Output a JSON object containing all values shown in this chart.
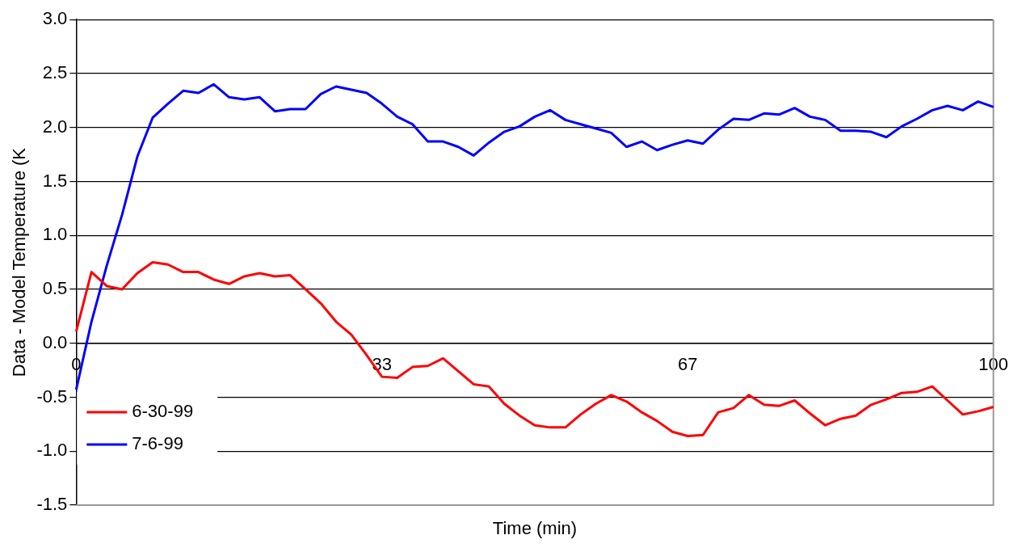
{
  "chart_data": {
    "type": "line",
    "xlabel": "Time (min)",
    "ylabel": "Data - Model Temperature (K",
    "categories": [
      "0",
      null,
      null,
      null,
      null,
      null,
      null,
      null,
      null,
      null,
      null,
      null,
      null,
      null,
      null,
      null,
      null,
      null,
      null,
      null,
      "33",
      null,
      null,
      null,
      null,
      null,
      null,
      null,
      null,
      null,
      null,
      null,
      null,
      null,
      null,
      null,
      null,
      null,
      null,
      null,
      "67",
      null,
      null,
      null,
      null,
      null,
      null,
      null,
      null,
      null,
      null,
      null,
      null,
      null,
      null,
      null,
      null,
      null,
      null,
      null,
      "100"
    ],
    "series": [
      {
        "name": "6-30-99",
        "color": "#ff0000",
        "values": [
          0.11,
          0.66,
          0.53,
          0.5,
          0.65,
          0.75,
          0.73,
          0.66,
          0.66,
          0.59,
          0.55,
          0.62,
          0.65,
          0.62,
          0.63,
          0.5,
          0.37,
          0.2,
          0.08,
          -0.11,
          -0.31,
          -0.32,
          -0.22,
          -0.21,
          -0.14,
          -0.26,
          -0.38,
          -0.4,
          -0.56,
          -0.67,
          -0.76,
          -0.78,
          -0.78,
          -0.66,
          -0.56,
          -0.48,
          -0.54,
          -0.64,
          -0.72,
          -0.82,
          -0.86,
          -0.85,
          -0.64,
          -0.6,
          -0.48,
          -0.57,
          -0.58,
          -0.53,
          -0.65,
          -0.76,
          -0.7,
          -0.67,
          -0.57,
          -0.52,
          -0.46,
          -0.45,
          -0.4,
          -0.53,
          -0.66,
          -0.63,
          -0.59
        ]
      },
      {
        "name": "7-6-99",
        "color": "#0000ff",
        "values": [
          -0.43,
          0.2,
          0.72,
          1.19,
          1.73,
          2.09,
          2.22,
          2.34,
          2.32,
          2.4,
          2.28,
          2.26,
          2.28,
          2.15,
          2.17,
          2.17,
          2.31,
          2.38,
          2.35,
          2.32,
          2.22,
          2.1,
          2.03,
          1.87,
          1.87,
          1.82,
          1.74,
          1.86,
          1.96,
          2.01,
          2.1,
          2.16,
          2.07,
          2.03,
          1.99,
          1.95,
          1.82,
          1.87,
          1.79,
          1.84,
          1.88,
          1.85,
          1.98,
          2.08,
          2.07,
          2.13,
          2.12,
          2.18,
          2.1,
          2.07,
          1.97,
          1.97,
          1.96,
          1.91,
          2.01,
          2.08,
          2.16,
          2.2,
          2.16,
          2.24,
          2.19
        ]
      }
    ],
    "ylim": [
      -1.5,
      3.0
    ],
    "yticks": [
      {
        "value": -1.5,
        "label": "-1.5"
      },
      {
        "value": -1,
        "label": "-1.0"
      },
      {
        "value": -0.5,
        "label": "-0.5"
      },
      {
        "value": 0,
        "label": "0.0"
      },
      {
        "value": 0.5,
        "label": "0.5"
      },
      {
        "value": 1,
        "label": "1.0"
      },
      {
        "value": 1.5,
        "label": "1.5"
      },
      {
        "value": 2,
        "label": "2.0"
      },
      {
        "value": 2.5,
        "label": "2.5"
      },
      {
        "value": 3,
        "label": "3.0"
      }
    ],
    "grid": "y",
    "legend": "bottom left",
    "marker": "none",
    "line_style": "solid"
  }
}
